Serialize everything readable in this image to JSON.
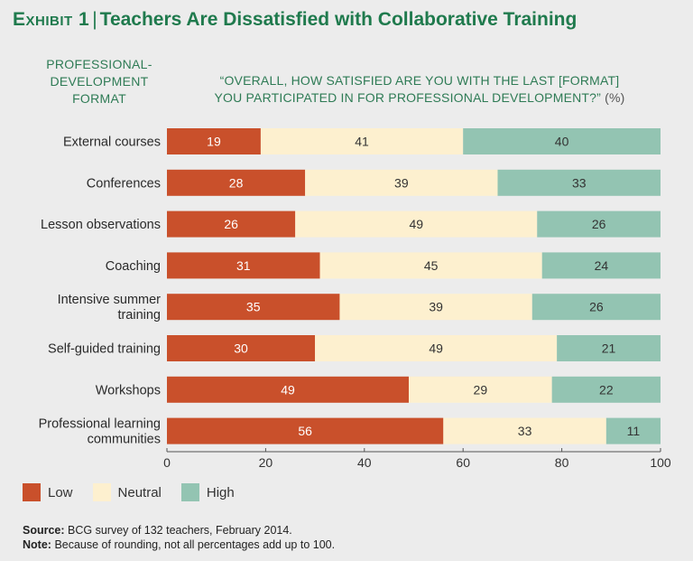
{
  "title": {
    "exhibit": "Exhibit 1",
    "separator": "|",
    "text": "Teachers Are Dissatisfied with Collaborative Training"
  },
  "headers": {
    "left_line1": "PROFESSIONAL-",
    "left_line2": "DEVELOPMENT",
    "left_line3": "FORMAT",
    "right_line1": "“OVERALL, HOW SATISFIED ARE YOU WITH THE LAST [FORMAT]",
    "right_line2": "YOU PARTICIPATED IN FOR PROFESSIONAL DEVELOPMENT?”",
    "right_unit": "(%)"
  },
  "colors": {
    "low": "#c9502b",
    "neutral": "#fdf0cf",
    "high": "#93c4b2",
    "low_text": "#ffffff",
    "neutral_text": "#333333",
    "high_text": "#333333"
  },
  "chart_data": {
    "type": "bar",
    "orientation": "horizontal",
    "stacked": true,
    "categories": [
      [
        "External courses"
      ],
      [
        "Conferences"
      ],
      [
        "Lesson observations"
      ],
      [
        "Coaching"
      ],
      [
        "Intensive summer",
        "training"
      ],
      [
        "Self-guided training"
      ],
      [
        "Workshops"
      ],
      [
        "Professional learning",
        "communities"
      ]
    ],
    "series": [
      {
        "name": "Low",
        "key": "low",
        "values": [
          19,
          28,
          26,
          31,
          35,
          30,
          49,
          56
        ]
      },
      {
        "name": "Neutral",
        "key": "neutral",
        "values": [
          41,
          39,
          49,
          45,
          39,
          49,
          29,
          33
        ]
      },
      {
        "name": "High",
        "key": "high",
        "values": [
          40,
          33,
          26,
          24,
          26,
          21,
          22,
          11
        ]
      }
    ],
    "xlim": [
      0,
      100
    ],
    "xticks": [
      0,
      20,
      40,
      60,
      80,
      100
    ],
    "legend_position": "bottom-left"
  },
  "legend": {
    "low": "Low",
    "neutral": "Neutral",
    "high": "High"
  },
  "footer": {
    "source_label": "Source:",
    "source_text": "BCG survey of 132 teachers, February 2014.",
    "note_label": "Note:",
    "note_text": "Because of rounding, not all percentages add up to 100."
  }
}
